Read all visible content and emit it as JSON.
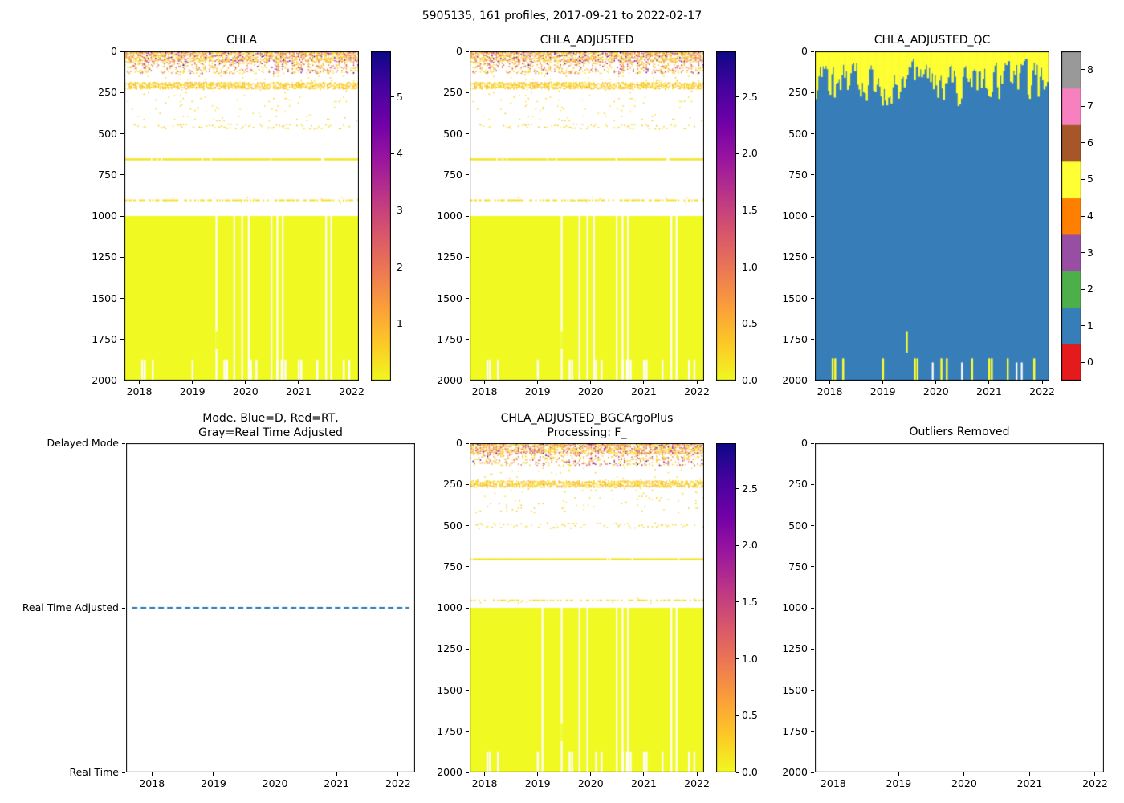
{
  "figure_title": "5905135, 161 profiles, 2017-09-21 to 2022-02-17",
  "colors": {
    "plasma_stops": [
      "#0d0887",
      "#46039f",
      "#7201a8",
      "#9c179e",
      "#bd3786",
      "#d8576b",
      "#ed7953",
      "#fb9f3a",
      "#fdca26",
      "#f0f921"
    ],
    "qc_set1": [
      "#e41a1c",
      "#377eb8",
      "#4daf4a",
      "#984ea3",
      "#ff7f00",
      "#ffff33",
      "#a65628",
      "#f781bf",
      "#999999"
    ],
    "mode_line": "#1f77b4",
    "deep_block_yellow": "#f0f921",
    "qc_body_blue": "#377eb8",
    "qc_surface_yellow": "#ffff33"
  },
  "chart_data": [
    {
      "id": "chla",
      "type": "heatmap",
      "title": "CHLA",
      "x_range_years": [
        2017.72,
        2022.135
      ],
      "y_range_depth": [
        0,
        2000
      ],
      "xticks": [
        "2018",
        "2019",
        "2020",
        "2021",
        "2022"
      ],
      "yticks": [
        "0",
        "250",
        "500",
        "750",
        "1000",
        "1250",
        "1500",
        "1750",
        "2000"
      ],
      "n_profiles": 161,
      "colorbar": {
        "vmin": 0,
        "vmax": 5.8,
        "ticks": [
          "1",
          "2",
          "3",
          "4",
          "5"
        ]
      },
      "pattern": {
        "seed": 42,
        "surface_layer_max_depth": 130,
        "scatter_band": [
          185,
          222
        ],
        "dot_band": [
          438,
          468
        ],
        "solid_line_depth": 650,
        "dashed_line_depth": 900,
        "deep_block": [
          1000,
          2000
        ],
        "deep_block_value": 0.0,
        "missing_profile_fracs": [
          0.468,
          0.502,
          0.53,
          0.627,
          0.652,
          0.675,
          0.86,
          0.882
        ],
        "bottom_notch_fracs": [
          0.075,
          0.086,
          0.12,
          0.29,
          0.426,
          0.437,
          0.539,
          0.562,
          0.652,
          0.67,
          0.686,
          0.743,
          0.754,
          0.822,
          0.935,
          0.958
        ],
        "spike": {
          "x_frac": 0.392,
          "depth_range": [
            1700,
            1805
          ]
        }
      }
    },
    {
      "id": "chla_adjusted",
      "type": "heatmap",
      "title": "CHLA_ADJUSTED",
      "x_range_years": [
        2017.72,
        2022.135
      ],
      "y_range_depth": [
        0,
        2000
      ],
      "xticks": [
        "2018",
        "2019",
        "2020",
        "2021",
        "2022"
      ],
      "yticks": [
        "0",
        "250",
        "500",
        "750",
        "1000",
        "1250",
        "1500",
        "1750",
        "2000"
      ],
      "n_profiles": 161,
      "colorbar": {
        "vmin": 0,
        "vmax": 2.9,
        "ticks": [
          "0.0",
          "0.5",
          "1.0",
          "1.5",
          "2.0",
          "2.5"
        ]
      },
      "pattern": {
        "seed": 42,
        "surface_layer_max_depth": 130,
        "scatter_band": [
          185,
          222
        ],
        "dot_band": [
          438,
          468
        ],
        "solid_line_depth": 650,
        "dashed_line_depth": 900,
        "deep_block": [
          1000,
          2000
        ],
        "deep_block_value": 0.0,
        "missing_profile_fracs": [
          0.468,
          0.502,
          0.53,
          0.627,
          0.652,
          0.675,
          0.86,
          0.882
        ],
        "bottom_notch_fracs": [
          0.075,
          0.086,
          0.12,
          0.29,
          0.426,
          0.437,
          0.539,
          0.562,
          0.652,
          0.67,
          0.686,
          0.743,
          0.754,
          0.822,
          0.935,
          0.958
        ],
        "spike": {
          "x_frac": 0.392,
          "depth_range": [
            1700,
            1805
          ]
        }
      }
    },
    {
      "id": "qc",
      "type": "qc_heatmap",
      "title": "CHLA_ADJUSTED_QC",
      "x_range_years": [
        2017.72,
        2022.135
      ],
      "y_range_depth": [
        0,
        2000
      ],
      "xticks": [
        "2018",
        "2019",
        "2020",
        "2021",
        "2022"
      ],
      "yticks": [
        "0",
        "250",
        "500",
        "750",
        "1000",
        "1250",
        "1500",
        "1750",
        "2000"
      ],
      "n_profiles": 161,
      "colorbar": {
        "type": "discrete",
        "ticks": [
          "0",
          "1",
          "2",
          "3",
          "4",
          "5",
          "6",
          "7",
          "8"
        ]
      },
      "pattern": {
        "seed": 7,
        "dominant_flag": 1,
        "surface_flag": 5,
        "surface_flag_max_depth": 450,
        "bottom_yellow_fracs": [
          0.075,
          0.086,
          0.12,
          0.29,
          0.426,
          0.437,
          0.539,
          0.562,
          0.67,
          0.743,
          0.754,
          0.822,
          0.935
        ],
        "bottom_gap_fracs": [
          0.502,
          0.627,
          0.86,
          0.882
        ],
        "spike": {
          "x_frac": 0.392,
          "depth_range": [
            1700,
            1830
          ]
        }
      }
    },
    {
      "id": "mode",
      "type": "line",
      "title_line1": "Mode. Blue=D, Red=RT,",
      "title_line2": "Gray=Real Time Adjusted",
      "x_range_years": [
        2017.72,
        2022.135
      ],
      "x_margin": 0.03,
      "xticks": [
        "2018",
        "2019",
        "2020",
        "2021",
        "2022"
      ],
      "yticks": [
        "Delayed Mode",
        "Real Time Adjusted",
        "Real Time"
      ],
      "line": {
        "y_category": "Real Time Adjusted",
        "style": "dashed",
        "color": "#1f77b4"
      }
    },
    {
      "id": "bgc",
      "type": "heatmap",
      "title_line1": "CHLA_ADJUSTED_BGCArgoPlus",
      "title_line2": "Processing: F_",
      "x_range_years": [
        2017.72,
        2022.135
      ],
      "y_range_depth": [
        0,
        2000
      ],
      "xticks": [
        "2018",
        "2019",
        "2020",
        "2021",
        "2022"
      ],
      "yticks": [
        "0",
        "250",
        "500",
        "750",
        "1000",
        "1250",
        "1500",
        "1750",
        "2000"
      ],
      "n_profiles": 161,
      "colorbar": {
        "vmin": 0,
        "vmax": 2.9,
        "ticks": [
          "0.0",
          "0.5",
          "1.0",
          "1.5",
          "2.0",
          "2.5"
        ]
      },
      "pattern": {
        "seed": 77,
        "surface_layer_max_depth": 130,
        "scatter_band": [
          225,
          262
        ],
        "dot_band": [
          480,
          515
        ],
        "solid_line_depth": 700,
        "dashed_line_depth": 950,
        "deep_block": [
          1000,
          2000
        ],
        "deep_block_value": 0.0,
        "missing_profile_fracs": [
          0.31,
          0.468,
          0.502,
          0.627,
          0.652,
          0.675,
          0.86,
          0.882
        ],
        "bottom_notch_fracs": [
          0.075,
          0.086,
          0.12,
          0.29,
          0.426,
          0.437,
          0.539,
          0.562,
          0.652,
          0.67,
          0.686,
          0.743,
          0.754,
          0.822,
          0.935,
          0.958
        ],
        "spike": {
          "x_frac": 0.392,
          "depth_range": [
            1700,
            1810
          ]
        }
      }
    },
    {
      "id": "outliers",
      "type": "empty",
      "title": "Outliers Removed",
      "x_range_years": [
        2017.72,
        2022.135
      ],
      "xticks": [
        "2018",
        "2019",
        "2020",
        "2021",
        "2022"
      ],
      "yticks": [
        "0",
        "250",
        "500",
        "750",
        "1000",
        "1250",
        "1500",
        "1750",
        "2000"
      ]
    }
  ]
}
